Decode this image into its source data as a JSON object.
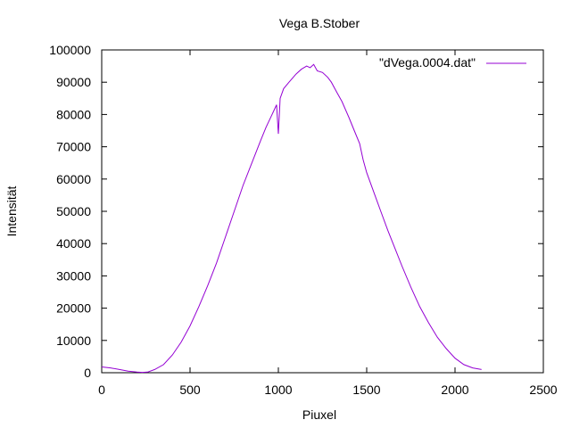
{
  "chart_data": {
    "type": "line",
    "title": "Vega B.Stober",
    "xlabel": "Piuxel",
    "ylabel": "Intensität",
    "xlim": [
      0,
      2500
    ],
    "ylim": [
      0,
      100000
    ],
    "xticks": [
      "0",
      "500",
      "1000",
      "1500",
      "2000",
      "2500"
    ],
    "yticks": [
      "0",
      "10000",
      "20000",
      "30000",
      "40000",
      "50000",
      "60000",
      "70000",
      "80000",
      "90000",
      "100000"
    ],
    "grid": false,
    "legend_position": "top-right",
    "series": [
      {
        "name": "\"dVega.0004.dat\"",
        "color": "#9400d3",
        "x": [
          0,
          50,
          100,
          150,
          200,
          230,
          260,
          300,
          350,
          400,
          450,
          500,
          550,
          600,
          650,
          700,
          750,
          800,
          850,
          900,
          930,
          960,
          990,
          1000,
          1010,
          1030,
          1060,
          1100,
          1130,
          1160,
          1180,
          1200,
          1220,
          1250,
          1280,
          1300,
          1330,
          1360,
          1400,
          1430,
          1460,
          1480,
          1500,
          1540,
          1580,
          1620,
          1660,
          1700,
          1750,
          1800,
          1850,
          1900,
          1950,
          2000,
          2050,
          2100,
          2150
        ],
        "y": [
          1800,
          1500,
          1000,
          500,
          200,
          100,
          200,
          1000,
          2500,
          5500,
          9500,
          14500,
          20500,
          27000,
          34000,
          42000,
          50000,
          58000,
          65000,
          72000,
          76000,
          79500,
          83000,
          74000,
          85000,
          88000,
          90000,
          92500,
          94000,
          95000,
          94500,
          95500,
          93500,
          93000,
          91500,
          90000,
          87000,
          84000,
          79000,
          75000,
          71000,
          66000,
          62000,
          56000,
          50000,
          44000,
          38500,
          33000,
          26500,
          20500,
          15500,
          11000,
          7500,
          4500,
          2500,
          1500,
          1000
        ]
      }
    ]
  }
}
